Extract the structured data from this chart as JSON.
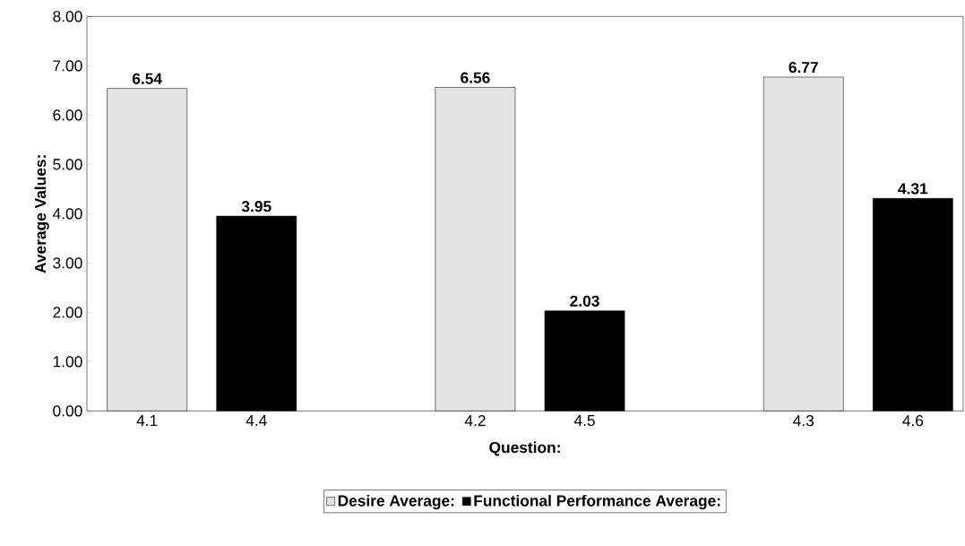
{
  "chart_data": {
    "type": "bar",
    "xlabel": "Question:",
    "ylabel": "Average Values:",
    "categories": [
      "4.1",
      "4.4",
      "4.2",
      "4.5",
      "4.3",
      "4.6"
    ],
    "series": [
      {
        "name": "Desire Average:",
        "color": "#e4e4e4",
        "values": [
          6.54,
          null,
          6.56,
          null,
          6.77,
          null
        ],
        "value_labels": [
          "6.54",
          null,
          "6.56",
          null,
          "6.77",
          null
        ]
      },
      {
        "name": "Functional Performance Average:",
        "color": "#000000",
        "values": [
          null,
          3.95,
          null,
          2.03,
          null,
          4.31
        ],
        "value_labels": [
          null,
          "3.95",
          null,
          "2.03",
          null,
          "4.31"
        ]
      }
    ],
    "ylim": [
      0,
      8
    ],
    "yticks": [
      {
        "value": 0,
        "label": "0.00"
      },
      {
        "value": 1,
        "label": "1.00"
      },
      {
        "value": 2,
        "label": "2.00"
      },
      {
        "value": 3,
        "label": "3.00"
      },
      {
        "value": 4,
        "label": "4.00"
      },
      {
        "value": 5,
        "label": "5.00"
      },
      {
        "value": 6,
        "label": "6.00"
      },
      {
        "value": 7,
        "label": "7.00"
      },
      {
        "value": 8,
        "label": "8.00"
      }
    ],
    "grid": false,
    "legend": "bottom"
  }
}
